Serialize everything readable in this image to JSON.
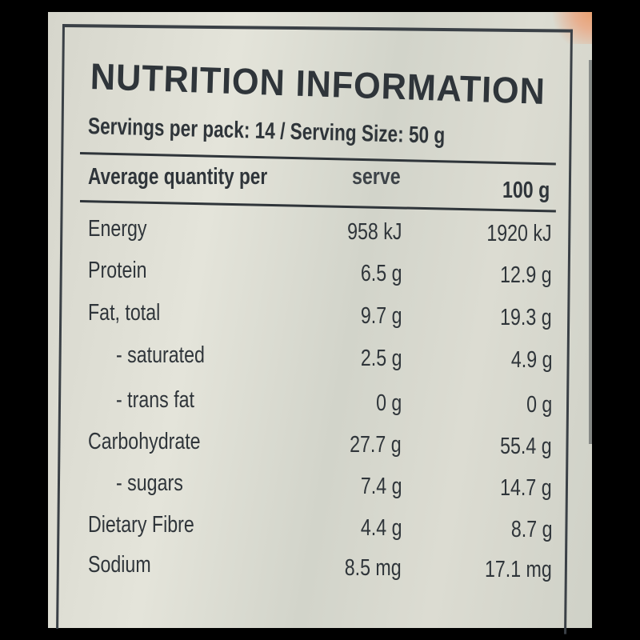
{
  "title": "NUTRITION INFORMATION",
  "servings_line": "Servings per pack: 14 / Serving Size: 50 g",
  "header": {
    "label": "Average quantity per",
    "serve": "serve",
    "per100": "100 g"
  },
  "rows": [
    {
      "name": "Energy",
      "serve": "958 kJ",
      "per100": "1920 kJ"
    },
    {
      "name": "Protein",
      "serve": "6.5 g",
      "per100": "12.9 g"
    },
    {
      "name": "Fat, total",
      "serve": "9.7 g",
      "per100": "19.3 g"
    },
    {
      "name": "- saturated",
      "serve": "2.5 g",
      "per100": "4.9 g"
    },
    {
      "name": "- trans fat",
      "serve": "0 g",
      "per100": "0 g"
    },
    {
      "name": "Carbohydrate",
      "serve": "27.7 g",
      "per100": "55.4 g"
    },
    {
      "name": "- sugars",
      "serve": "7.4 g",
      "per100": "14.7 g"
    },
    {
      "name": "Dietary Fibre",
      "serve": "4.4 g",
      "per100": "8.7 g"
    },
    {
      "name": "Sodium",
      "serve": "8.5 mg",
      "per100": "17.1 mg"
    }
  ],
  "colors": {
    "text": "#2f353a",
    "background": "#d8d9cf",
    "frame": "#000000"
  }
}
